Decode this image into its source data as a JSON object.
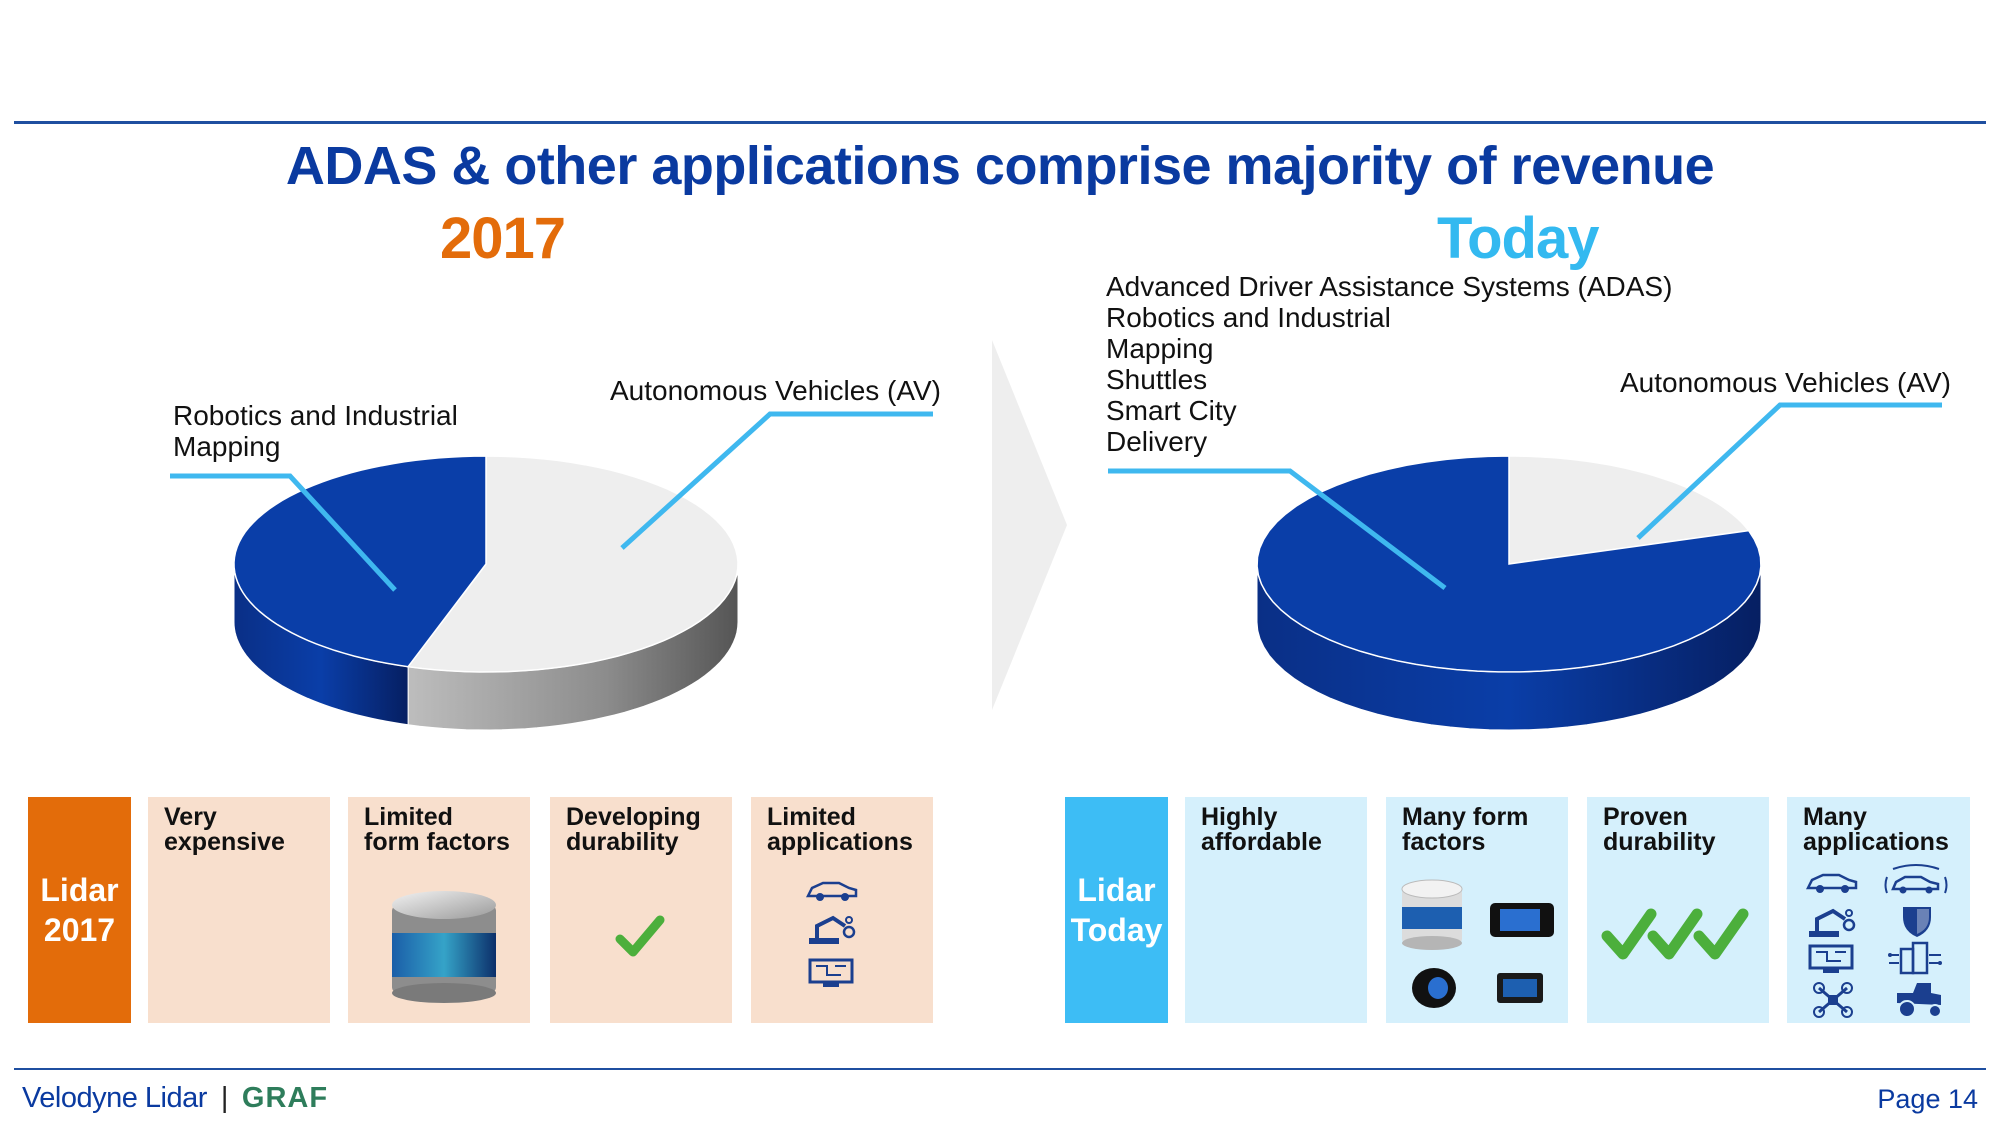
{
  "slide": {
    "title": "ADAS & other applications comprise majority of revenue",
    "page": "Page 14",
    "footer": {
      "brand": "Velodyne Lidar",
      "separator": "|",
      "partner": "GRAF"
    }
  },
  "left": {
    "year": "2017",
    "label_robotics": [
      "Robotics and Industrial",
      "Mapping"
    ],
    "label_av": "Autonomous Vehicles (AV)",
    "tag": [
      "Lidar",
      "2017"
    ],
    "cards": [
      {
        "lines": [
          "Very",
          "expensive"
        ]
      },
      {
        "lines": [
          "Limited",
          "form factors"
        ]
      },
      {
        "lines": [
          "Developing",
          "durability"
        ]
      },
      {
        "lines": [
          "Limited",
          "applications"
        ]
      }
    ]
  },
  "right": {
    "year": "Today",
    "label_list": [
      "Advanced Driver Assistance Systems (ADAS)",
      "Robotics and Industrial",
      "Mapping",
      "Shuttles",
      "Smart City",
      "Delivery"
    ],
    "label_av": "Autonomous Vehicles (AV)",
    "tag": [
      "Lidar",
      "Today"
    ],
    "cards": [
      {
        "lines": [
          "Highly",
          "affordable"
        ]
      },
      {
        "lines": [
          "Many form",
          "factors"
        ]
      },
      {
        "lines": [
          "Proven",
          "durability"
        ]
      },
      {
        "lines": [
          "Many",
          "applications"
        ]
      }
    ]
  },
  "colors": {
    "title": "#0a3aa0",
    "year_2017": "#e36c0a",
    "year_today": "#33b9f0",
    "tag_2017": "#e36c0a",
    "tag_today": "#3dbdf5",
    "card_2017": "#f8dfcd",
    "card_today": "#d5f0fc",
    "pie_blue": "#0a3ea8",
    "pie_gray": "#eeeeee",
    "leader": "#3fb8ef",
    "check": "#4caf3c"
  },
  "icons": {
    "left_applications": [
      "car-icon",
      "robot-arm-icon",
      "mapping-screen-icon"
    ],
    "right_applications": [
      "car-icon",
      "autonomous-car-icon",
      "robot-arm-icon",
      "shield-icon",
      "mapping-screen-icon",
      "smart-city-icon",
      "drone-icon",
      "tractor-icon"
    ],
    "left_form_factor": [
      "lidar-sensor-icon"
    ],
    "right_form_factors": [
      "lidar-puck-icon",
      "lidar-box-icon",
      "lidar-dome-icon",
      "lidar-cube-icon"
    ]
  },
  "chart_data": [
    {
      "type": "pie",
      "title": "2017",
      "categories": [
        "Robotics and Industrial Mapping",
        "Autonomous Vehicles (AV)"
      ],
      "values": [
        45,
        55
      ],
      "colors": [
        "#0a3ea8",
        "#eeeeee"
      ]
    },
    {
      "type": "pie",
      "title": "Today",
      "categories": [
        "Advanced Driver Assistance Systems (ADAS), Robotics and Industrial, Mapping, Shuttles, Smart City, Delivery",
        "Autonomous Vehicles (AV)"
      ],
      "values": [
        80,
        20
      ],
      "colors": [
        "#0a3ea8",
        "#eeeeee"
      ]
    }
  ]
}
